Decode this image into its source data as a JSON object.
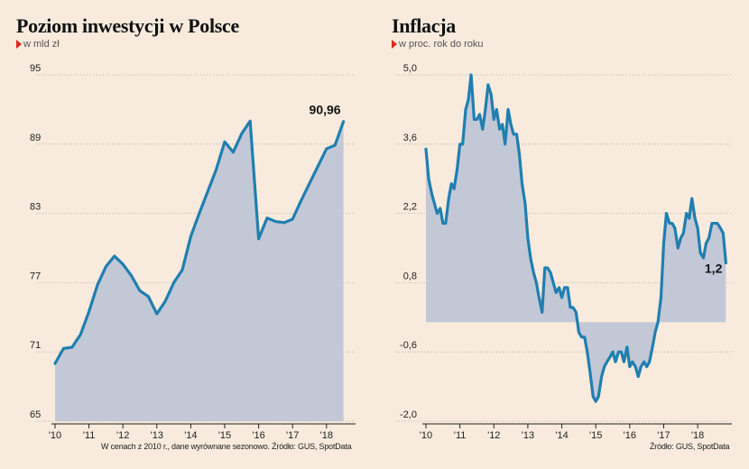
{
  "left": {
    "title": "Poziom inwestycji w Polsce",
    "subtitle": "w mld zł",
    "footnote": "W cenach z 2010 r., dane wyrównane sezonowo. Źródło: GUS, SpotData"
  },
  "right": {
    "title": "Inflacja",
    "subtitle": "w proc. rok do roku",
    "footnote": "Źródło: GUS, SpotData"
  },
  "colors": {
    "line": "#1f7fb0",
    "fill": "#c3c8d7",
    "marker": "#e0261b",
    "background": "#f8ebdd"
  },
  "chart_data": [
    {
      "type": "area",
      "title": "Poziom inwestycji w Polsce",
      "ylabel": "w mld zł",
      "ylim": [
        65,
        95
      ],
      "yticks": [
        "65",
        "71",
        "77",
        "83",
        "89",
        "95"
      ],
      "xlim": [
        2010,
        2018.75
      ],
      "xticks": [
        {
          "x": 2010,
          "label": "'10"
        },
        {
          "x": 2011,
          "label": "'11"
        },
        {
          "x": 2012,
          "label": "'12"
        },
        {
          "x": 2013,
          "label": "'13"
        },
        {
          "x": 2014,
          "label": "'14"
        },
        {
          "x": 2015,
          "label": "'15"
        },
        {
          "x": 2016,
          "label": "'16"
        },
        {
          "x": 2017,
          "label": "'17"
        },
        {
          "x": 2018,
          "label": "'18"
        }
      ],
      "x": [
        2010.0,
        2010.25,
        2010.5,
        2010.75,
        2011.0,
        2011.25,
        2011.5,
        2011.75,
        2012.0,
        2012.25,
        2012.5,
        2012.75,
        2013.0,
        2013.25,
        2013.5,
        2013.75,
        2014.0,
        2014.25,
        2014.5,
        2014.75,
        2015.0,
        2015.25,
        2015.5,
        2015.75,
        2016.0,
        2016.25,
        2016.5,
        2016.75,
        2017.0,
        2017.25,
        2017.5,
        2017.75,
        2018.0,
        2018.25,
        2018.5
      ],
      "y": [
        70.0,
        71.3,
        71.4,
        72.5,
        74.5,
        76.8,
        78.4,
        79.3,
        78.6,
        77.6,
        76.3,
        75.8,
        74.3,
        75.4,
        77.0,
        78.1,
        81.0,
        83.0,
        84.9,
        86.8,
        89.2,
        88.3,
        89.9,
        91.0,
        80.8,
        82.6,
        82.3,
        82.2,
        82.5,
        84.1,
        85.6,
        87.1,
        88.6,
        88.9,
        90.96
      ],
      "end_label": "90,96"
    },
    {
      "type": "area",
      "title": "Inflacja",
      "ylabel": "w proc. rok do roku",
      "ylim": [
        -2.0,
        5.0
      ],
      "yticks": [
        "-2,0",
        "-0,6",
        "0,8",
        "2,2",
        "3,6",
        "5,0"
      ],
      "xlim": [
        2010,
        2018.9
      ],
      "xticks": [
        {
          "x": 2010,
          "label": "'10"
        },
        {
          "x": 2011,
          "label": "'11"
        },
        {
          "x": 2012,
          "label": "'12"
        },
        {
          "x": 2013,
          "label": "'13"
        },
        {
          "x": 2014,
          "label": "'14"
        },
        {
          "x": 2015,
          "label": "'15"
        },
        {
          "x": 2016,
          "label": "'16"
        },
        {
          "x": 2017,
          "label": "'17"
        },
        {
          "x": 2018,
          "label": "'18"
        }
      ],
      "x": [
        2010.0,
        2010.08,
        2010.17,
        2010.25,
        2010.33,
        2010.42,
        2010.5,
        2010.58,
        2010.67,
        2010.75,
        2010.83,
        2010.92,
        2011.0,
        2011.08,
        2011.17,
        2011.25,
        2011.33,
        2011.42,
        2011.5,
        2011.58,
        2011.67,
        2011.75,
        2011.83,
        2011.92,
        2012.0,
        2012.08,
        2012.17,
        2012.25,
        2012.33,
        2012.42,
        2012.5,
        2012.58,
        2012.67,
        2012.75,
        2012.83,
        2012.92,
        2013.0,
        2013.08,
        2013.17,
        2013.25,
        2013.33,
        2013.42,
        2013.5,
        2013.58,
        2013.67,
        2013.75,
        2013.83,
        2013.92,
        2014.0,
        2014.08,
        2014.17,
        2014.25,
        2014.33,
        2014.42,
        2014.5,
        2014.58,
        2014.67,
        2014.75,
        2014.83,
        2014.92,
        2015.0,
        2015.08,
        2015.17,
        2015.25,
        2015.33,
        2015.42,
        2015.5,
        2015.58,
        2015.67,
        2015.75,
        2015.83,
        2015.92,
        2016.0,
        2016.08,
        2016.17,
        2016.25,
        2016.33,
        2016.42,
        2016.5,
        2016.58,
        2016.67,
        2016.75,
        2016.83,
        2016.92,
        2017.0,
        2017.08,
        2017.17,
        2017.25,
        2017.33,
        2017.42,
        2017.5,
        2017.58,
        2017.67,
        2017.75,
        2017.83,
        2017.92,
        2018.0,
        2018.08,
        2018.17,
        2018.25,
        2018.33,
        2018.42,
        2018.5,
        2018.58,
        2018.67,
        2018.75,
        2018.83
      ],
      "y": [
        3.5,
        2.9,
        2.6,
        2.4,
        2.2,
        2.3,
        2.0,
        2.0,
        2.5,
        2.8,
        2.7,
        3.1,
        3.6,
        3.6,
        4.3,
        4.5,
        5.0,
        4.1,
        4.1,
        4.2,
        3.9,
        4.3,
        4.8,
        4.6,
        4.1,
        4.3,
        3.9,
        4.0,
        3.6,
        4.3,
        4.0,
        3.8,
        3.8,
        3.4,
        2.8,
        2.4,
        1.7,
        1.3,
        1.0,
        0.8,
        0.5,
        0.2,
        1.1,
        1.1,
        1.0,
        0.8,
        0.6,
        0.7,
        0.5,
        0.7,
        0.7,
        0.3,
        0.3,
        0.2,
        -0.2,
        -0.3,
        -0.3,
        -0.6,
        -1.0,
        -1.5,
        -1.6,
        -1.5,
        -1.1,
        -0.9,
        -0.8,
        -0.7,
        -0.6,
        -0.8,
        -0.6,
        -0.6,
        -0.8,
        -0.5,
        -0.9,
        -0.8,
        -0.9,
        -1.1,
        -0.9,
        -0.8,
        -0.9,
        -0.8,
        -0.5,
        -0.2,
        0.0,
        0.5,
        1.6,
        2.2,
        2.0,
        2.0,
        1.9,
        1.5,
        1.7,
        1.8,
        2.2,
        2.1,
        2.5,
        2.1,
        1.9,
        1.4,
        1.3,
        1.6,
        1.7,
        2.0,
        2.0,
        2.0,
        1.9,
        1.8,
        1.2
      ],
      "baseline": 0,
      "end_label": "1,2"
    }
  ]
}
